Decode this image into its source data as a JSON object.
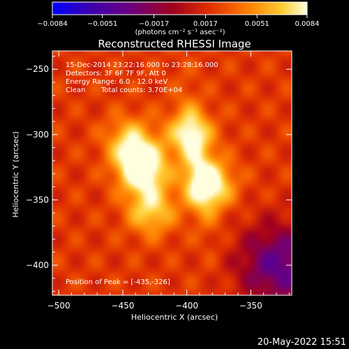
{
  "colorbar": {
    "ticks": [
      "-0.0084",
      "-0.0051",
      "-0.0017",
      "0.0017",
      "0.0051",
      "0.0084"
    ],
    "units": "(photons cm⁻² s⁻¹ asec⁻²)",
    "colors": [
      "#0000ff",
      "#3a00b0",
      "#6a0080",
      "#a00020",
      "#e03000",
      "#ff7a00",
      "#ffcc30",
      "#ffffe0"
    ]
  },
  "chart_data": {
    "type": "heatmap",
    "title": "Reconstructed RHESSI Image",
    "xlabel": "Heliocentric X (arcsec)",
    "ylabel": "Heliocentric Y (arcsec)",
    "xlim": [
      -505,
      -318
    ],
    "ylim": [
      -423,
      -236
    ],
    "xticks": [
      -500,
      -450,
      -400,
      -350
    ],
    "yticks": [
      -250,
      -300,
      -350,
      -400
    ],
    "xtick_labels": [
      "−500",
      "−450",
      "−400",
      "−350"
    ],
    "ytick_labels": [
      "−250",
      "−300",
      "−350",
      "−400"
    ],
    "zrange": [
      -0.0084,
      0.0084
    ],
    "sources": [
      {
        "x": -435,
        "y": -326,
        "amp": 0.0084
      },
      {
        "x": -383,
        "y": -338,
        "amp": 0.0072
      },
      {
        "x": -398,
        "y": -300,
        "amp": 0.0052
      },
      {
        "x": -428,
        "y": -358,
        "amp": 0.005
      },
      {
        "x": -445,
        "y": -305,
        "amp": 0.0045
      }
    ],
    "annotations": {
      "time": "15-Dec-2014 23:22:16.000 to 23:28:16.000",
      "detectors": "Detectors: 3F 6F 7F 9F, Att 0",
      "energy": "Energy Range: 6.0 - 12.0 keV",
      "method": "Clean",
      "counts": "Total counts: 3.70E+04",
      "peak": "Position of Peak = [-435,-326]"
    }
  },
  "footer": {
    "date": "20-May-2022 15:51"
  }
}
